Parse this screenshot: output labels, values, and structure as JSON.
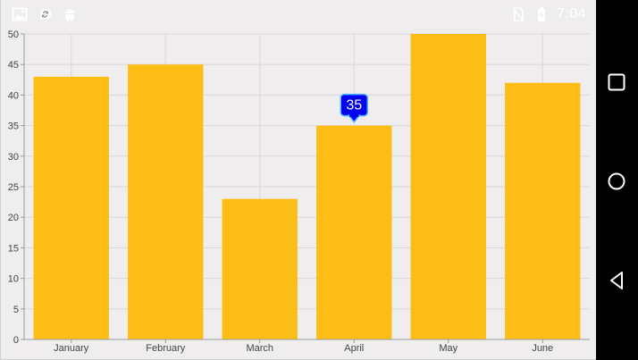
{
  "status_bar": {
    "time": "7:04",
    "icons": [
      "image-icon",
      "sync-chat-icon",
      "android-icon",
      "no-sim-icon",
      "battery-charging-icon"
    ]
  },
  "nav_bar": {
    "buttons": [
      "recents-square-icon",
      "home-circle-icon",
      "back-triangle-icon"
    ]
  },
  "colors": {
    "bar": "#fcbd16",
    "tooltip_bg": "#0000ef",
    "tooltip_border": "#4fb5ff",
    "grid": "#ddd6dc",
    "background": "#efeded"
  },
  "chart_data": {
    "type": "bar",
    "categories": [
      "January",
      "February",
      "March",
      "April",
      "May",
      "June"
    ],
    "values": [
      43,
      45,
      23,
      35,
      50,
      42
    ],
    "ylim": [
      0,
      50
    ],
    "yticks": [
      "0",
      "5",
      "10",
      "15",
      "20",
      "25",
      "30",
      "35",
      "40",
      "45",
      "50"
    ],
    "xlabel": "",
    "ylabel": "",
    "grid": true,
    "tooltip": {
      "category": "April",
      "label": "35"
    }
  }
}
